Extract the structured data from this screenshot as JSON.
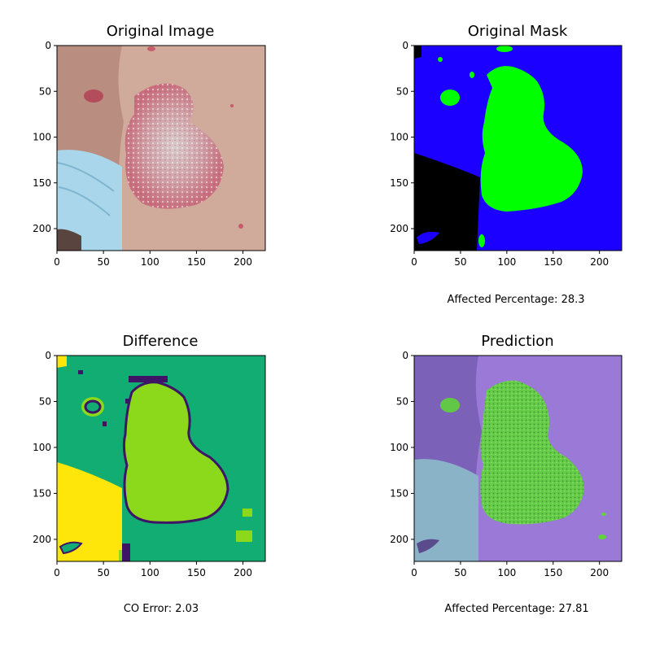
{
  "chart_data": [
    {
      "type": "image",
      "title": "Original Image",
      "caption": "",
      "xticks": [
        "0",
        "50",
        "100",
        "150",
        "200"
      ],
      "yticks": [
        "0",
        "50",
        "100",
        "150",
        "200"
      ],
      "xlim": [
        0,
        224
      ],
      "ylim": [
        224,
        0
      ]
    },
    {
      "type": "image",
      "title": "Original Mask",
      "caption": "Affected Percentage: 28.3",
      "affected_percentage": 28.3,
      "colors": {
        "background": "#1c00ff",
        "lesion": "#00ff00",
        "ignore": "#000000"
      },
      "xticks": [
        "0",
        "50",
        "100",
        "150",
        "200"
      ],
      "yticks": [
        "0",
        "50",
        "100",
        "150",
        "200"
      ],
      "xlim": [
        0,
        224
      ],
      "ylim": [
        224,
        0
      ]
    },
    {
      "type": "image",
      "title": "Difference",
      "caption": "CO Error: 2.03",
      "co_error": 2.03,
      "colors": {
        "agree_background": "#12ad72",
        "agree_lesion": "#8bd91a",
        "outline": "#3e1466",
        "ignore": "#ffe60a"
      },
      "xticks": [
        "0",
        "50",
        "100",
        "150",
        "200"
      ],
      "yticks": [
        "0",
        "50",
        "100",
        "150",
        "200"
      ],
      "xlim": [
        0,
        224
      ],
      "ylim": [
        224,
        0
      ]
    },
    {
      "type": "image",
      "title": "Prediction",
      "caption": "Affected Percentage: 27.81",
      "affected_percentage": 27.81,
      "colors": {
        "background_overlay": "#9a7ad6",
        "lesion_overlay": "#5fd33a"
      },
      "xticks": [
        "0",
        "50",
        "100",
        "150",
        "200"
      ],
      "yticks": [
        "0",
        "50",
        "100",
        "150",
        "200"
      ],
      "xlim": [
        0,
        224
      ],
      "ylim": [
        224,
        0
      ]
    }
  ]
}
